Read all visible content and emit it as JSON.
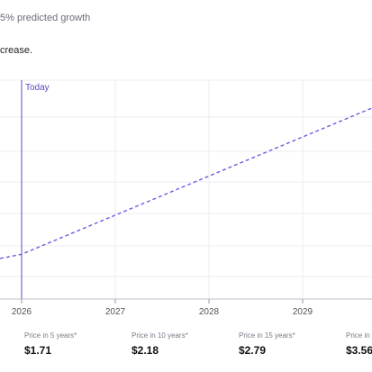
{
  "header": {
    "growth_text": "5% predicted growth",
    "description_text": "crease."
  },
  "chart_data": {
    "type": "line",
    "today_label": "Today",
    "x_ticks": [
      "2026",
      "2027",
      "2028",
      "2029"
    ],
    "series": [
      {
        "style": "dashed",
        "color": "#6f5ce0",
        "points": [
          [
            2025.77,
            1.0
          ],
          [
            2026,
            1.06
          ],
          [
            2029.9,
            3.2
          ]
        ]
      }
    ],
    "today_x": 2026
  },
  "stats": [
    {
      "label": "Price in 5 years*",
      "value": "$1.71"
    },
    {
      "label": "Price in 10 years*",
      "value": "$2.18"
    },
    {
      "label": "Price in 15 years*",
      "value": "$2.79"
    },
    {
      "label": "Price in",
      "value": "$3.56"
    }
  ],
  "colors": {
    "accent": "#5b46c7",
    "line": "#6f5ce0",
    "grid": "#ececf2"
  }
}
